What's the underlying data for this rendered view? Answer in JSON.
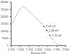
{
  "chart_data": {
    "type": "line",
    "x_label": "Energy (eV)",
    "x": [
      1.7,
      1.75,
      1.8,
      1.85,
      1.9,
      1.95,
      2.0,
      2.05,
      2.1,
      2.15,
      2.2,
      2.25,
      2.3,
      2.35,
      2.4,
      2.45,
      2.5,
      2.55,
      2.6,
      2.65,
      2.7,
      2.75,
      2.8,
      2.85,
      2.9
    ],
    "values": [
      14000,
      17000,
      20000,
      23000,
      25500,
      27000,
      26500,
      25000,
      23500,
      22000,
      20500,
      19000,
      17500,
      16000,
      14000,
      12000,
      9500,
      7000,
      4500,
      2500,
      1200,
      600,
      300,
      150,
      100
    ],
    "color": "#5b9bd5",
    "line_style": "dotted",
    "xlim": [
      1.7,
      2.9
    ],
    "xticks": [
      {
        "value": 1.7,
        "label": "1.700"
      },
      {
        "value": 1.9,
        "label": "1.900"
      },
      {
        "value": 2.1,
        "label": "2.100"
      },
      {
        "value": 2.3,
        "label": "2.300"
      },
      {
        "value": 2.5,
        "label": "2.500"
      },
      {
        "value": 2.7,
        "label": "2.700"
      },
      {
        "value": 2.9,
        "label": "2.900"
      }
    ],
    "ylim": [
      0,
      30000
    ],
    "yticks": [
      0,
      5000,
      10000,
      15000,
      20000,
      25000,
      30000
    ],
    "grid": false,
    "annotations": [
      {
        "x": 2.42,
        "y": 13200,
        "text": "2.42 eV"
      },
      {
        "x": 2.48,
        "y": 10500,
        "text": "2.48 eV"
      },
      {
        "x": 2.55,
        "y": 7000,
        "text": "2.55 eV"
      }
    ]
  }
}
